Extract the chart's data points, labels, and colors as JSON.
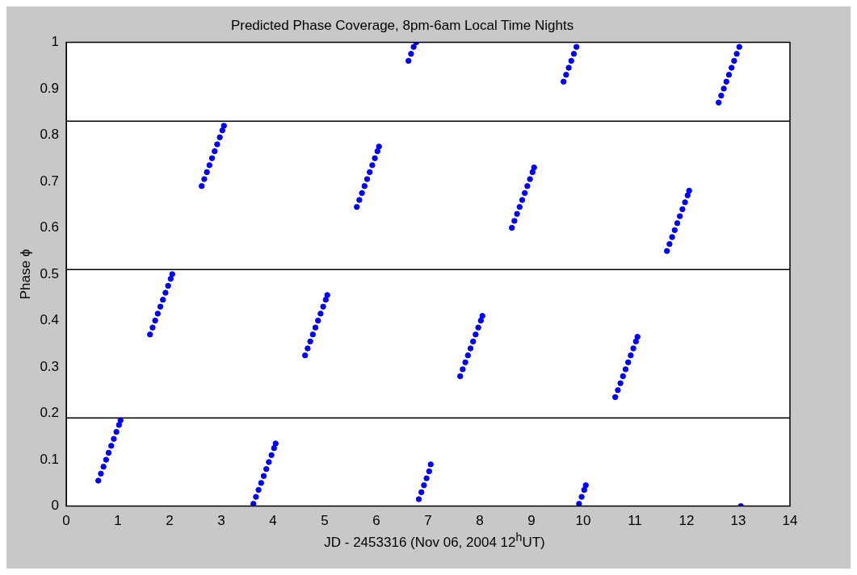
{
  "chart_data": {
    "type": "scatter",
    "title": "Predicted Phase Coverage, 8pm-6am Local Time Nights",
    "xlabel": "JD - 2453316  (Nov 06, 2004 12$^{h}$UT)",
    "ylabel": "Phase ϕ",
    "xlim": [
      0,
      14
    ],
    "xticks": [
      0,
      1,
      2,
      3,
      4,
      5,
      6,
      7,
      8,
      9,
      10,
      11,
      12,
      13,
      14
    ],
    "ylim": [
      0,
      1
    ],
    "yticks": [
      0,
      0.1,
      0.2,
      0.3,
      0.4,
      0.5,
      0.6,
      0.7,
      0.8,
      0.9,
      1
    ],
    "marker": "circle",
    "grid": false,
    "legend": false,
    "ref_lines": [
      {
        "axis": "y",
        "value": 0.83,
        "color": "#000000"
      },
      {
        "axis": "y",
        "value": 0.51,
        "color": "#000000"
      },
      {
        "axis": "y",
        "value": 0.19,
        "color": "#000000"
      }
    ],
    "series": [
      {
        "color": "#0000ff",
        "x": [
          0.62,
          0.67,
          0.72,
          0.77,
          0.82,
          0.87,
          0.92,
          0.97,
          1.02,
          1.05,
          1.62,
          1.67,
          1.72,
          1.77,
          1.82,
          1.87,
          1.92,
          1.97,
          2.02,
          2.05,
          2.62,
          2.67,
          2.72,
          2.77,
          2.82,
          2.87,
          2.92,
          2.97,
          3.02,
          3.05,
          3.62,
          3.67,
          3.72,
          3.77,
          3.82,
          3.87,
          3.92,
          3.97,
          4.02,
          4.05,
          4.62,
          4.67,
          4.72,
          4.77,
          4.82,
          4.87,
          4.92,
          4.97,
          5.02,
          5.05,
          5.62,
          5.67,
          5.72,
          5.77,
          5.82,
          5.87,
          5.92,
          5.97,
          6.02,
          6.05,
          6.62,
          6.67,
          6.72,
          6.77,
          6.82,
          6.87,
          6.92,
          6.97,
          7.02,
          7.05,
          7.62,
          7.67,
          7.72,
          7.77,
          7.82,
          7.87,
          7.92,
          7.97,
          8.02,
          8.05,
          8.62,
          8.67,
          8.72,
          8.77,
          8.82,
          8.87,
          8.92,
          8.97,
          9.02,
          9.05,
          9.62,
          9.67,
          9.72,
          9.77,
          9.82,
          9.87,
          9.92,
          9.97,
          10.02,
          10.05,
          10.62,
          10.67,
          10.72,
          10.77,
          10.82,
          10.87,
          10.92,
          10.97,
          11.02,
          11.05,
          11.62,
          11.67,
          11.72,
          11.77,
          11.82,
          11.87,
          11.92,
          11.97,
          12.02,
          12.05,
          12.62,
          12.67,
          12.72,
          12.77,
          12.82,
          12.87,
          12.92,
          12.97,
          13.02,
          13.05
        ],
        "values": [
          0.055,
          0.07,
          0.085,
          0.1,
          0.115,
          0.13,
          0.145,
          0.16,
          0.175,
          0.185,
          0.37,
          0.385,
          0.4,
          0.415,
          0.43,
          0.445,
          0.46,
          0.475,
          0.49,
          0.5,
          0.69,
          0.705,
          0.72,
          0.735,
          0.75,
          0.765,
          0.78,
          0.795,
          0.81,
          0.82,
          0.005,
          0.02,
          0.035,
          0.05,
          0.065,
          0.08,
          0.095,
          0.11,
          0.125,
          0.135,
          0.325,
          0.34,
          0.355,
          0.37,
          0.385,
          0.4,
          0.415,
          0.43,
          0.445,
          0.455,
          0.645,
          0.66,
          0.675,
          0.69,
          0.705,
          0.72,
          0.735,
          0.75,
          0.765,
          0.775,
          0.96,
          0.975,
          0.99,
          1.0,
          0.015,
          0.03,
          0.045,
          0.06,
          0.075,
          0.09,
          0.28,
          0.295,
          0.31,
          0.325,
          0.34,
          0.355,
          0.37,
          0.385,
          0.4,
          0.41,
          0.6,
          0.615,
          0.63,
          0.645,
          0.66,
          0.675,
          0.69,
          0.705,
          0.72,
          0.73,
          0.915,
          0.93,
          0.945,
          0.96,
          0.975,
          0.99,
          0.005,
          0.02,
          0.035,
          0.045,
          0.235,
          0.25,
          0.265,
          0.28,
          0.295,
          0.31,
          0.325,
          0.34,
          0.355,
          0.365,
          0.55,
          0.565,
          0.58,
          0.595,
          0.61,
          0.625,
          0.64,
          0.655,
          0.67,
          0.68,
          0.87,
          0.885,
          0.9,
          0.915,
          0.93,
          0.945,
          0.96,
          0.975,
          0.99,
          0.0
        ]
      }
    ]
  }
}
